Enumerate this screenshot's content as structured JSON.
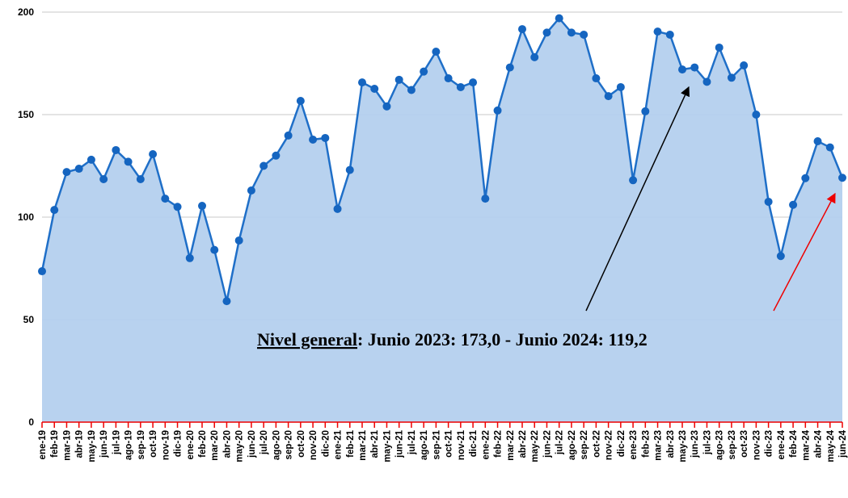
{
  "chart_data": {
    "type": "area",
    "categories": [
      "ene-19",
      "feb-19",
      "mar-19",
      "abr-19",
      "may-19",
      "jun-19",
      "jul-19",
      "ago-19",
      "sep-19",
      "oct-19",
      "nov-19",
      "dic-19",
      "ene-20",
      "feb-20",
      "mar-20",
      "abr-20",
      "may-20",
      "jun-20",
      "jul-20",
      "ago-20",
      "sep-20",
      "oct-20",
      "nov-20",
      "dic-20",
      "ene-21",
      "feb-21",
      "mar-21",
      "abr-21",
      "may-21",
      "jun-21",
      "jul-21",
      "ago-21",
      "sep-21",
      "oct-21",
      "nov-21",
      "dic-21",
      "ene-22",
      "feb-22",
      "mar-22",
      "abr-22",
      "may-22",
      "jun-22",
      "jul-22",
      "ago-22",
      "sep-22",
      "oct-22",
      "nov-22",
      "dic-22",
      "ene-23",
      "feb-23",
      "mar-23",
      "abr-23",
      "may-23",
      "jun-23",
      "jul-23",
      "ago-23",
      "sep-23",
      "oct-23",
      "nov-23",
      "dic-23",
      "ene-24",
      "feb-24",
      "mar-24",
      "abr-24",
      "may-24",
      "jun-24"
    ],
    "values": [
      73.6,
      103.5,
      122,
      123.6,
      128,
      118.5,
      132.7,
      127,
      118.5,
      130.7,
      109,
      105,
      80,
      105.5,
      84,
      59,
      88.6,
      113,
      125,
      130,
      139.8,
      156.7,
      137.8,
      138.6,
      104,
      123,
      165.7,
      162.6,
      154,
      167,
      162,
      171,
      180.7,
      167.7,
      163.4,
      165.7,
      109,
      152,
      173,
      191.7,
      178,
      190,
      197,
      190,
      189,
      167.7,
      159,
      163.4,
      118,
      151.6,
      190.5,
      189,
      172,
      173.0,
      166,
      182.7,
      168,
      174,
      150,
      107.5,
      81,
      106,
      119,
      137,
      134,
      119.2
    ],
    "color": "#1f6fc8",
    "fill": "#b4d0ee",
    "ylim": [
      0,
      200
    ],
    "yticks": [
      0,
      50,
      100,
      150,
      200
    ],
    "grid": true,
    "annotation": {
      "label": "Nivel general",
      "text": ": Junio 2023: 173,0 - Junio 2024: 119,2"
    }
  }
}
